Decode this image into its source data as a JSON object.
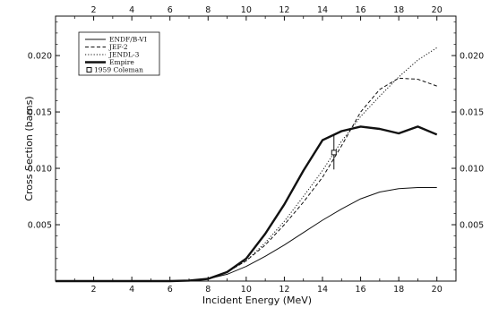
{
  "chart_data": {
    "type": "line",
    "xlabel": "Incident Energy (MeV)",
    "ylabel": "Cross Section (barns)",
    "xlim": [
      0,
      21
    ],
    "ylim": [
      0,
      0.0235
    ],
    "x_ticks": [
      2,
      4,
      6,
      8,
      10,
      12,
      14,
      16,
      18,
      20
    ],
    "x_tick_labels": [
      "2",
      "4",
      "6",
      "8",
      "10",
      "12",
      "14",
      "16",
      "18",
      "20"
    ],
    "y_ticks": [
      0.005,
      0.01,
      0.015,
      0.02
    ],
    "y_tick_labels_left": [
      "0.005",
      "0.010",
      "0.015",
      "0.020"
    ],
    "y_tick_labels_right": [
      "0.005",
      "0.010",
      "0.015",
      "0.020"
    ],
    "grid": false,
    "legend_position": "top-left",
    "series": [
      {
        "name": "ENDF/B-VI",
        "style": "solid-thin",
        "x": [
          0,
          6,
          7,
          8,
          9,
          10,
          11,
          12,
          13,
          14,
          15,
          16,
          17,
          18,
          19,
          20
        ],
        "y": [
          0,
          0,
          5e-05,
          0.0002,
          0.0006,
          0.0013,
          0.0022,
          0.0032,
          0.0043,
          0.0054,
          0.0064,
          0.0073,
          0.0079,
          0.0082,
          0.0083,
          0.0083
        ]
      },
      {
        "name": "JEF-2",
        "style": "dashed",
        "x": [
          0,
          6,
          7,
          8,
          9,
          10,
          11,
          12,
          13,
          14,
          15,
          16,
          17,
          18,
          19,
          20
        ],
        "y": [
          0,
          0,
          5e-05,
          0.0002,
          0.0008,
          0.0018,
          0.0032,
          0.005,
          0.007,
          0.0092,
          0.012,
          0.015,
          0.017,
          0.018,
          0.0179,
          0.0173
        ]
      },
      {
        "name": "JENDL-3",
        "style": "dotted",
        "x": [
          0,
          6,
          7,
          8,
          9,
          10,
          11,
          12,
          13,
          14,
          15,
          16,
          17,
          18,
          19,
          20
        ],
        "y": [
          0,
          0,
          5e-05,
          0.0002,
          0.0008,
          0.0018,
          0.0034,
          0.0053,
          0.0075,
          0.0098,
          0.0124,
          0.0146,
          0.0164,
          0.0181,
          0.0196,
          0.0207
        ]
      },
      {
        "name": "Empire",
        "style": "solid-thick",
        "x": [
          0,
          6,
          7,
          8,
          9,
          10,
          11,
          12,
          13,
          14,
          15,
          16,
          17,
          18,
          19,
          20
        ],
        "y": [
          0,
          0,
          5e-05,
          0.0002,
          0.0008,
          0.002,
          0.0042,
          0.0068,
          0.0098,
          0.0125,
          0.0133,
          0.0137,
          0.0135,
          0.0131,
          0.0137,
          0.013
        ]
      }
    ],
    "measurement": {
      "name": "1959 Coleman",
      "x": 14.6,
      "y": 0.0114,
      "y_err": 0.0015
    }
  }
}
